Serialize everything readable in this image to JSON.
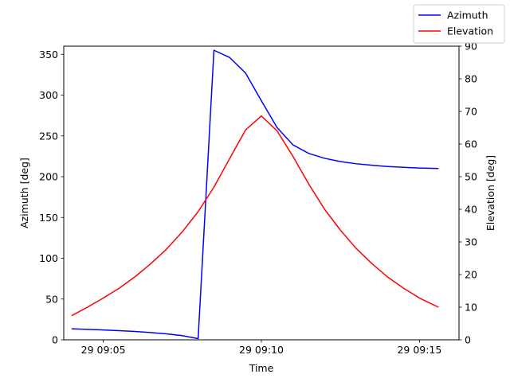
{
  "chart_data": {
    "type": "line",
    "xlabel": "Time",
    "ylabel_left": "Azimuth [deg]",
    "ylabel_right": "Elevation [deg]",
    "x_unit": "minutes past 09:00 on day 29",
    "xlim": [
      3.75,
      16.25
    ],
    "ylim_left": [
      0,
      360
    ],
    "ylim_right": [
      0,
      90
    ],
    "x_ticks": [
      {
        "value": 5,
        "label": "29 09:05"
      },
      {
        "value": 10,
        "label": "29 09:10"
      },
      {
        "value": 15,
        "label": "29 09:15"
      }
    ],
    "y_ticks_left": [
      0,
      50,
      100,
      150,
      200,
      250,
      300,
      350
    ],
    "y_ticks_right": [
      0,
      10,
      20,
      30,
      40,
      50,
      60,
      70,
      80,
      90
    ],
    "grid": false,
    "legend_position": "top-right",
    "series": [
      {
        "name": "Azimuth",
        "axis": "left",
        "color": "#0000ff",
        "x": [
          4.0,
          4.5,
          5.0,
          5.5,
          6.0,
          6.5,
          7.0,
          7.5,
          8.0,
          8.5,
          9.0,
          9.5,
          10.0,
          10.5,
          11.0,
          11.5,
          12.0,
          12.5,
          13.0,
          13.5,
          14.0,
          14.5,
          15.0,
          15.6
        ],
        "y": [
          13.5,
          12.8,
          12.1,
          11.2,
          10.2,
          8.9,
          7.3,
          5.1,
          1.5,
          355,
          346,
          327,
          293,
          260,
          239,
          228.5,
          222.5,
          218.5,
          215.8,
          214.0,
          212.5,
          211.4,
          210.6,
          210.0
        ]
      },
      {
        "name": "Elevation",
        "axis": "right",
        "color": "#ff0000",
        "x": [
          4.0,
          4.5,
          5.0,
          5.5,
          6.0,
          6.5,
          7.0,
          7.5,
          8.0,
          8.5,
          9.0,
          9.5,
          10.0,
          10.5,
          11.0,
          11.5,
          12.0,
          12.5,
          13.0,
          13.5,
          14.0,
          14.5,
          15.0,
          15.6
        ],
        "y": [
          7.4,
          10.0,
          12.8,
          15.8,
          19.3,
          23.3,
          27.8,
          33.1,
          39.3,
          46.8,
          55.6,
          64.3,
          68.6,
          64.0,
          56.2,
          47.7,
          40.0,
          33.6,
          28.0,
          23.3,
          19.2,
          15.8,
          12.8,
          10.0
        ]
      }
    ]
  },
  "colors": {
    "azimuth": "#0000ff",
    "elevation": "#ff0000"
  }
}
